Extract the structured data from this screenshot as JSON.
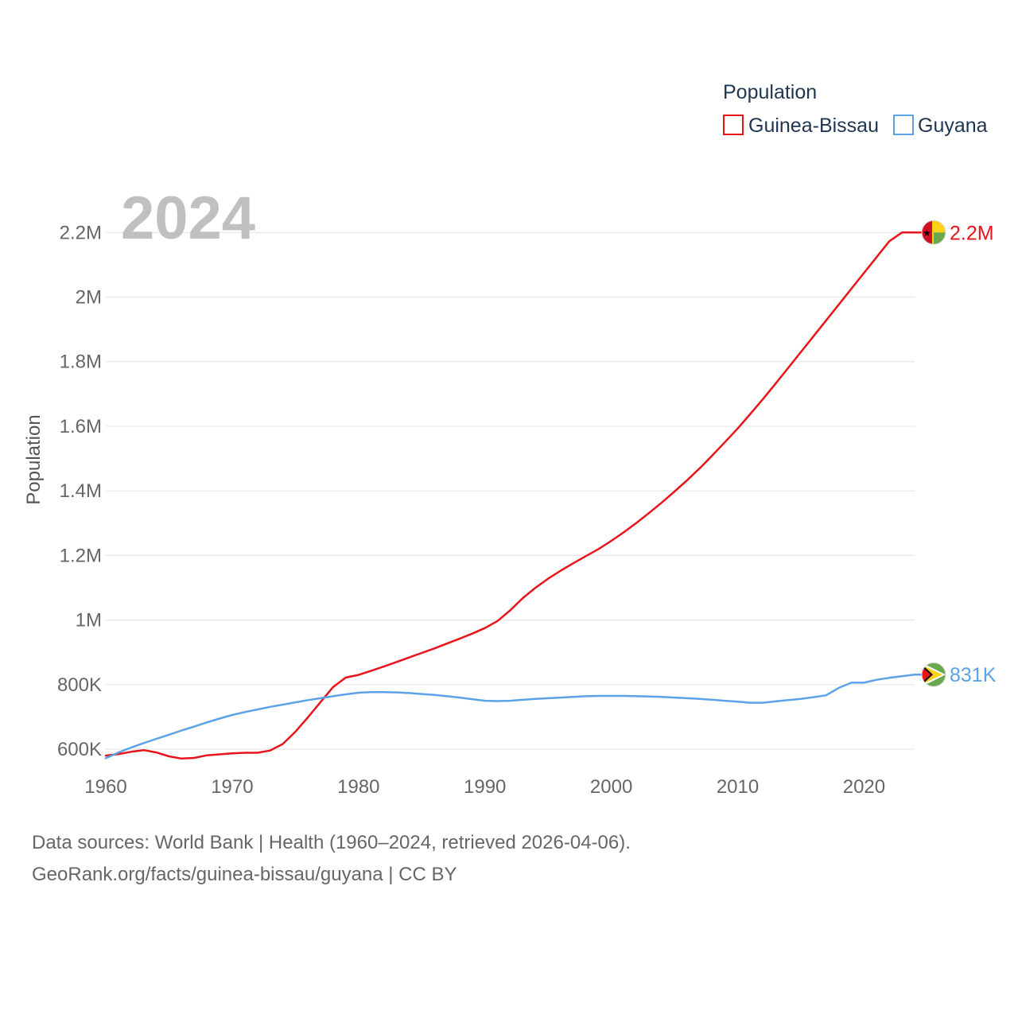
{
  "chart_data": {
    "type": "line",
    "year_label": "2024",
    "ylabel": "Population",
    "xlabel": "",
    "xlim": [
      1960,
      2024
    ],
    "ylim": [
      440000,
      2250000
    ],
    "x_ticks": [
      1960,
      1970,
      1980,
      1990,
      2000,
      2010,
      2020
    ],
    "y_ticks": [
      {
        "value": 600000,
        "label": "600K"
      },
      {
        "value": 800000,
        "label": "800K"
      },
      {
        "value": 1000000,
        "label": "1M"
      },
      {
        "value": 1200000,
        "label": "1.2M"
      },
      {
        "value": 1400000,
        "label": "1.4M"
      },
      {
        "value": 1600000,
        "label": "1.6M"
      },
      {
        "value": 1800000,
        "label": "1.8M"
      },
      {
        "value": 2000000,
        "label": "2M"
      },
      {
        "value": 2200000,
        "label": "2.2M"
      }
    ],
    "legend": {
      "title": "Population",
      "position": "top-right"
    },
    "series": [
      {
        "name": "Guinea-Bissau",
        "color": "#e8141b",
        "end_label": "2.2M",
        "flag": "guinea-bissau-flag",
        "x": [
          1960,
          1961,
          1962,
          1963,
          1964,
          1965,
          1966,
          1967,
          1968,
          1969,
          1970,
          1971,
          1972,
          1973,
          1974,
          1975,
          1976,
          1977,
          1978,
          1979,
          1980,
          1981,
          1982,
          1983,
          1984,
          1985,
          1986,
          1987,
          1988,
          1989,
          1990,
          1991,
          1992,
          1993,
          1994,
          1995,
          1996,
          1997,
          1998,
          1999,
          2000,
          2001,
          2002,
          2003,
          2004,
          2005,
          2006,
          2007,
          2008,
          2009,
          2010,
          2011,
          2012,
          2013,
          2014,
          2015,
          2016,
          2017,
          2018,
          2019,
          2020,
          2021,
          2022,
          2023,
          2024
        ],
        "values": [
          580000,
          585000,
          592000,
          597000,
          590000,
          578000,
          571000,
          573000,
          581000,
          584000,
          587000,
          589000,
          589000,
          596000,
          616000,
          654000,
          699000,
          746000,
          793000,
          822000,
          830000,
          843000,
          856000,
          870000,
          884000,
          898000,
          912000,
          927000,
          942000,
          958000,
          975000,
          997000,
          1030000,
          1068000,
          1100000,
          1128000,
          1153000,
          1176000,
          1198000,
          1220000,
          1245000,
          1272000,
          1301000,
          1332000,
          1364000,
          1398000,
          1433000,
          1470000,
          1510000,
          1551000,
          1593000,
          1638000,
          1684000,
          1732000,
          1781000,
          1830000,
          1879000,
          1928000,
          1977000,
          2026000,
          2075000,
          2124000,
          2173000,
          2200000,
          2200000
        ]
      },
      {
        "name": "Guyana",
        "color": "#5ba3e6",
        "end_label": "831K",
        "flag": "guyana-flag",
        "x": [
          1960,
          1961,
          1962,
          1963,
          1964,
          1965,
          1966,
          1967,
          1968,
          1969,
          1970,
          1971,
          1972,
          1973,
          1974,
          1975,
          1976,
          1977,
          1978,
          1979,
          1980,
          1981,
          1982,
          1983,
          1984,
          1985,
          1986,
          1987,
          1988,
          1989,
          1990,
          1991,
          1992,
          1993,
          1994,
          1995,
          1996,
          1997,
          1998,
          1999,
          2000,
          2001,
          2002,
          2003,
          2004,
          2005,
          2006,
          2007,
          2008,
          2009,
          2010,
          2011,
          2012,
          2013,
          2014,
          2015,
          2016,
          2017,
          2018,
          2019,
          2020,
          2021,
          2022,
          2023,
          2024
        ],
        "values": [
          572000,
          590000,
          605000,
          619000,
          632000,
          645000,
          658000,
          670000,
          683000,
          695000,
          706000,
          715000,
          723000,
          731000,
          738000,
          745000,
          752000,
          758000,
          764000,
          770000,
          775000,
          777000,
          777000,
          776000,
          774000,
          771000,
          768000,
          764000,
          760000,
          755000,
          750000,
          749000,
          750000,
          753000,
          756000,
          758000,
          760000,
          762000,
          764000,
          765000,
          765000,
          765000,
          764000,
          763000,
          762000,
          760000,
          758000,
          756000,
          753000,
          750000,
          747000,
          744000,
          744000,
          748000,
          752000,
          756000,
          761000,
          767000,
          790000,
          806000,
          806000,
          815000,
          821000,
          826000,
          831000
        ]
      }
    ]
  },
  "footer": {
    "source_line1": "Data sources: World Bank | Health (1960–2024, retrieved 2026-04-06).",
    "source_line2": "GeoRank.org/facts/guinea-bissau/guyana | CC BY"
  }
}
